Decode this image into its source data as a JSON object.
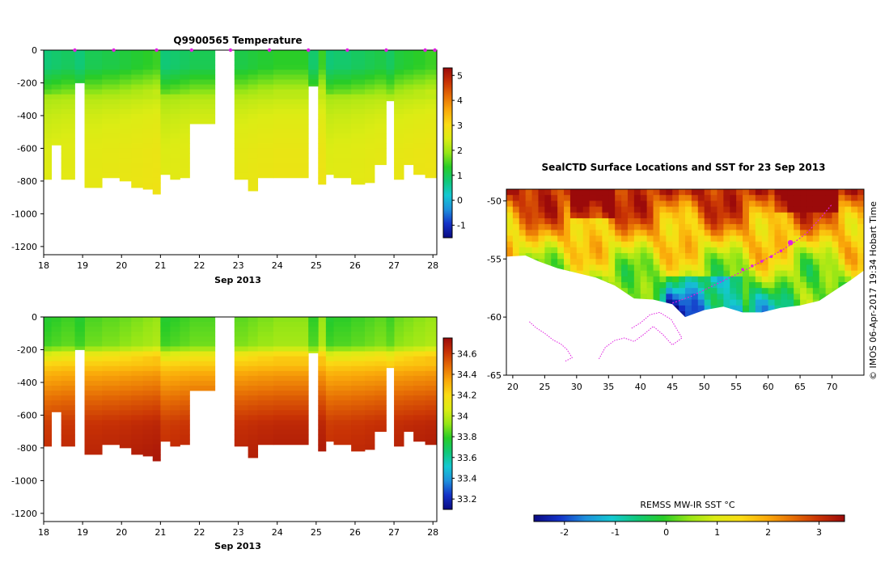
{
  "charts": [
    {
      "type": "heatmap",
      "title": "Q9900565  Temperature",
      "xlabel": "Sep 2013",
      "x_ticks": [
        "18",
        "19",
        "20",
        "21",
        "22",
        "23",
        "24",
        "25",
        "26",
        "27",
        "28"
      ],
      "xlim": [
        18,
        28.1
      ],
      "ylim": [
        -1250,
        0
      ],
      "y_ticks": [
        "0",
        "-200",
        "-400",
        "-600",
        "-800",
        "-1000",
        "-1200"
      ],
      "colorbar": {
        "ticks": [
          "5",
          "4",
          "3",
          "2",
          "1",
          "0",
          "-1"
        ],
        "range": [
          -1.5,
          5.3
        ]
      },
      "profiles": [
        {
          "start": 18.0,
          "end": 18.2,
          "depth": 790
        },
        {
          "start": 18.2,
          "end": 18.45,
          "depth": 580
        },
        {
          "start": 18.45,
          "end": 18.8,
          "depth": 790
        },
        {
          "start": 19.05,
          "end": 19.5,
          "depth": 840
        },
        {
          "start": 19.5,
          "end": 19.95,
          "depth": 780
        },
        {
          "start": 19.95,
          "end": 20.25,
          "depth": 800
        },
        {
          "start": 20.25,
          "end": 20.55,
          "depth": 840
        },
        {
          "start": 20.55,
          "end": 20.8,
          "depth": 850
        },
        {
          "start": 20.8,
          "end": 21.0,
          "depth": 880
        },
        {
          "start": 21.0,
          "end": 21.25,
          "depth": 760
        },
        {
          "start": 21.25,
          "end": 21.5,
          "depth": 790
        },
        {
          "start": 21.5,
          "end": 21.75,
          "depth": 780
        },
        {
          "start": 21.75,
          "end": 22.4,
          "depth": 450
        },
        {
          "start": 22.9,
          "end": 23.25,
          "depth": 790
        },
        {
          "start": 23.25,
          "end": 23.5,
          "depth": 860
        },
        {
          "start": 23.5,
          "end": 23.9,
          "depth": 780
        },
        {
          "start": 23.9,
          "end": 24.8,
          "depth": 780
        },
        {
          "start": 25.05,
          "end": 25.25,
          "depth": 820
        },
        {
          "start": 25.25,
          "end": 25.45,
          "depth": 760
        },
        {
          "start": 25.45,
          "end": 25.9,
          "depth": 780
        },
        {
          "start": 25.9,
          "end": 26.25,
          "depth": 820
        },
        {
          "start": 26.25,
          "end": 26.5,
          "depth": 810
        },
        {
          "start": 26.5,
          "end": 26.8,
          "depth": 700
        },
        {
          "start": 27.0,
          "end": 27.25,
          "depth": 790
        },
        {
          "start": 27.25,
          "end": 27.5,
          "depth": 700
        },
        {
          "start": 27.5,
          "end": 27.8,
          "depth": 760
        },
        {
          "start": 27.8,
          "end": 28.1,
          "depth": 780
        }
      ],
      "partial_profiles": [
        {
          "start": 18.8,
          "end": 19.05,
          "depth": 200
        },
        {
          "start": 24.8,
          "end": 25.05,
          "depth": 220
        },
        {
          "start": 26.8,
          "end": 27.0,
          "depth": 310
        }
      ],
      "markers": [
        18.8,
        19.8,
        20.9,
        21.8,
        22.8,
        23.8,
        24.8,
        25.8,
        26.8,
        27.8,
        28.05
      ],
      "color_profile": [
        {
          "depth": 0,
          "value": 1.1
        },
        {
          "depth": 100,
          "value": 1.1
        },
        {
          "depth": 200,
          "value": 1.6
        },
        {
          "depth": 300,
          "value": 2.2
        },
        {
          "depth": 400,
          "value": 2.4
        },
        {
          "depth": 600,
          "value": 2.6
        },
        {
          "depth": 900,
          "value": 2.7
        }
      ]
    },
    {
      "type": "heatmap",
      "title": "",
      "xlabel": "Sep 2013",
      "x_ticks": [
        "18",
        "19",
        "20",
        "21",
        "22",
        "23",
        "24",
        "25",
        "26",
        "27",
        "28"
      ],
      "xlim": [
        18,
        28.1
      ],
      "ylim": [
        -1250,
        0
      ],
      "y_ticks": [
        "0",
        "-200",
        "-400",
        "-600",
        "-800",
        "-1000",
        "-1200"
      ],
      "colorbar": {
        "ticks": [
          "34.6",
          "34.4",
          "34.2",
          "34",
          "33.8",
          "33.6",
          "33.4",
          "33.2"
        ],
        "range": [
          33.1,
          34.75
        ]
      },
      "profiles": [
        {
          "start": 18.0,
          "end": 18.2,
          "depth": 790
        },
        {
          "start": 18.2,
          "end": 18.45,
          "depth": 580
        },
        {
          "start": 18.45,
          "end": 18.8,
          "depth": 790
        },
        {
          "start": 19.05,
          "end": 19.5,
          "depth": 840
        },
        {
          "start": 19.5,
          "end": 19.95,
          "depth": 780
        },
        {
          "start": 19.95,
          "end": 20.25,
          "depth": 800
        },
        {
          "start": 20.25,
          "end": 20.55,
          "depth": 840
        },
        {
          "start": 20.55,
          "end": 20.8,
          "depth": 850
        },
        {
          "start": 20.8,
          "end": 21.0,
          "depth": 880
        },
        {
          "start": 21.0,
          "end": 21.25,
          "depth": 760
        },
        {
          "start": 21.25,
          "end": 21.5,
          "depth": 790
        },
        {
          "start": 21.5,
          "end": 21.75,
          "depth": 780
        },
        {
          "start": 21.75,
          "end": 22.4,
          "depth": 450
        },
        {
          "start": 22.9,
          "end": 23.25,
          "depth": 790
        },
        {
          "start": 23.25,
          "end": 23.5,
          "depth": 860
        },
        {
          "start": 23.5,
          "end": 23.9,
          "depth": 780
        },
        {
          "start": 23.9,
          "end": 24.8,
          "depth": 780
        },
        {
          "start": 25.05,
          "end": 25.25,
          "depth": 820
        },
        {
          "start": 25.25,
          "end": 25.45,
          "depth": 760
        },
        {
          "start": 25.45,
          "end": 25.9,
          "depth": 780
        },
        {
          "start": 25.9,
          "end": 26.25,
          "depth": 820
        },
        {
          "start": 26.25,
          "end": 26.5,
          "depth": 810
        },
        {
          "start": 26.5,
          "end": 26.8,
          "depth": 700
        },
        {
          "start": 27.0,
          "end": 27.25,
          "depth": 790
        },
        {
          "start": 27.25,
          "end": 27.5,
          "depth": 700
        },
        {
          "start": 27.5,
          "end": 27.8,
          "depth": 760
        },
        {
          "start": 27.8,
          "end": 28.1,
          "depth": 780
        }
      ],
      "partial_profiles": [
        {
          "start": 18.8,
          "end": 19.05,
          "depth": 200
        },
        {
          "start": 24.8,
          "end": 25.05,
          "depth": 220
        },
        {
          "start": 26.8,
          "end": 27.0,
          "depth": 310
        }
      ],
      "markers": [],
      "color_profile": [
        {
          "depth": 0,
          "value": 33.85
        },
        {
          "depth": 180,
          "value": 33.9
        },
        {
          "depth": 230,
          "value": 34.15
        },
        {
          "depth": 350,
          "value": 34.35
        },
        {
          "depth": 500,
          "value": 34.5
        },
        {
          "depth": 650,
          "value": 34.62
        },
        {
          "depth": 900,
          "value": 34.68
        }
      ]
    },
    {
      "type": "heatmap",
      "title": "SealCTD Surface Locations and SST for 23 Sep 2013",
      "xlim": [
        19,
        75
      ],
      "ylim": [
        -65,
        -49
      ],
      "x_ticks": [
        "20",
        "25",
        "30",
        "35",
        "40",
        "45",
        "50",
        "55",
        "60",
        "65",
        "70"
      ],
      "y_ticks": [
        "-50",
        "-55",
        "-60",
        "-65"
      ],
      "colorbar": {
        "label": "REMSS MW-IR SST °C",
        "ticks": [
          "-2",
          "-1",
          "0",
          "1",
          "2",
          "3"
        ],
        "range": [
          -2.6,
          3.5
        ]
      },
      "side_label": "© IMOS 06-Apr-2017 19:34 Hobart Time",
      "ice_edge": [
        [
          19,
          -54.8
        ],
        [
          22,
          -54.7
        ],
        [
          24,
          -55.2
        ],
        [
          27,
          -55.8
        ],
        [
          30,
          -56.2
        ],
        [
          33,
          -56.6
        ],
        [
          36,
          -57.3
        ],
        [
          39,
          -58.4
        ],
        [
          42,
          -58.5
        ],
        [
          45,
          -58.9
        ],
        [
          47,
          -60.0
        ],
        [
          50,
          -59.4
        ],
        [
          53,
          -59.1
        ],
        [
          56,
          -59.6
        ],
        [
          59,
          -59.6
        ],
        [
          62,
          -59.2
        ],
        [
          65,
          -59.0
        ],
        [
          68,
          -58.6
        ],
        [
          71,
          -57.5
        ],
        [
          73,
          -56.8
        ],
        [
          75,
          -56.0
        ]
      ],
      "track": [
        [
          45,
          -58.8
        ],
        [
          48,
          -58.2
        ],
        [
          51,
          -57.4
        ],
        [
          54,
          -56.6
        ],
        [
          57,
          -55.8
        ],
        [
          60,
          -54.9
        ],
        [
          62,
          -54.3
        ],
        [
          64,
          -53.6
        ],
        [
          66,
          -52.8
        ],
        [
          68,
          -51.6
        ],
        [
          70,
          -50.3
        ]
      ],
      "track_points": [
        [
          56,
          -55.9
        ],
        [
          57.5,
          -55.6
        ],
        [
          59,
          -55.2
        ],
        [
          60.5,
          -54.8
        ],
        [
          62,
          -54.3
        ],
        [
          63.5,
          -53.6
        ]
      ],
      "current_position": [
        63.5,
        -53.6
      ],
      "drift_tracks": [
        [
          [
            22.6,
            -60.4
          ],
          [
            23.6,
            -60.9
          ],
          [
            25.0,
            -61.4
          ],
          [
            26.4,
            -62.0
          ],
          [
            27.5,
            -62.3
          ],
          [
            28.5,
            -62.8
          ],
          [
            29.3,
            -63.5
          ],
          [
            28.2,
            -63.8
          ]
        ],
        [
          [
            33.5,
            -63.6
          ],
          [
            34.5,
            -62.6
          ],
          [
            36.0,
            -62.0
          ],
          [
            37.5,
            -61.8
          ],
          [
            39.0,
            -62.1
          ],
          [
            40.5,
            -61.5
          ],
          [
            42.0,
            -60.8
          ],
          [
            43.5,
            -61.5
          ],
          [
            45.0,
            -62.4
          ],
          [
            46.5,
            -61.8
          ],
          [
            44.8,
            -60.2
          ],
          [
            43.0,
            -59.6
          ],
          [
            41.5,
            -59.8
          ],
          [
            40.0,
            -60.5
          ],
          [
            38.5,
            -61.0
          ]
        ]
      ]
    }
  ],
  "colors": {
    "gradient": [
      "#0a0a82",
      "#1432c8",
      "#1e90dc",
      "#14c8d2",
      "#10c878",
      "#28cc28",
      "#96e616",
      "#dcec14",
      "#fadc14",
      "#faaa0a",
      "#e66e05",
      "#c83205",
      "#9b0a0a"
    ],
    "track": "#e020e0"
  }
}
